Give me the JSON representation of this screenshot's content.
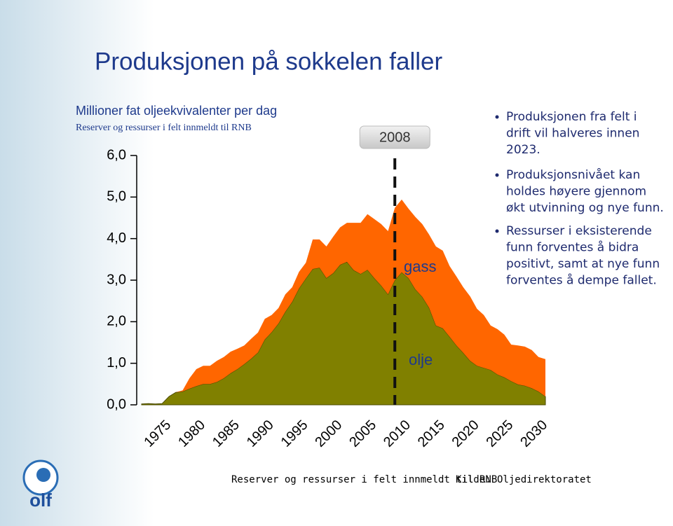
{
  "chart_data": {
    "type": "stacked-area",
    "title": "Produksjonen på sokkelen faller",
    "subtitle": "Millioner fat oljeekvivalenter per dag",
    "subtitle2": "Reserver og ressurser i felt innmeldt til RNB",
    "x": [
      1971,
      1972,
      1973,
      1974,
      1975,
      1976,
      1977,
      1978,
      1979,
      1980,
      1981,
      1982,
      1983,
      1984,
      1985,
      1986,
      1987,
      1988,
      1989,
      1990,
      1991,
      1992,
      1993,
      1994,
      1995,
      1996,
      1997,
      1998,
      1999,
      2000,
      2001,
      2002,
      2003,
      2004,
      2005,
      2006,
      2007,
      2008,
      2009,
      2010,
      2011,
      2012,
      2013,
      2014,
      2015,
      2016,
      2017,
      2018,
      2019,
      2020,
      2021,
      2022,
      2023,
      2024,
      2025,
      2026,
      2027,
      2028,
      2029,
      2030
    ],
    "series": [
      {
        "name": "olje",
        "color": "#808000",
        "values": [
          0.02,
          0.03,
          0.02,
          0.03,
          0.2,
          0.3,
          0.32,
          0.39,
          0.45,
          0.5,
          0.5,
          0.55,
          0.64,
          0.76,
          0.86,
          0.98,
          1.11,
          1.26,
          1.57,
          1.75,
          1.96,
          2.24,
          2.48,
          2.8,
          3.04,
          3.27,
          3.3,
          3.05,
          3.17,
          3.37,
          3.44,
          3.24,
          3.15,
          3.25,
          3.05,
          2.87,
          2.66,
          3.0,
          3.19,
          3.05,
          2.78,
          2.6,
          2.34,
          1.91,
          1.84,
          1.64,
          1.43,
          1.25,
          1.06,
          0.94,
          0.89,
          0.84,
          0.73,
          0.66,
          0.57,
          0.49,
          0.46,
          0.4,
          0.32,
          0.2
        ]
      },
      {
        "name": "gass",
        "color": "#ff6600",
        "values": [
          0,
          0,
          0,
          0,
          0,
          0,
          0.03,
          0.25,
          0.41,
          0.44,
          0.44,
          0.51,
          0.51,
          0.52,
          0.49,
          0.45,
          0.48,
          0.48,
          0.5,
          0.41,
          0.37,
          0.42,
          0.35,
          0.4,
          0.38,
          0.71,
          0.68,
          0.76,
          0.88,
          0.9,
          0.94,
          1.14,
          1.23,
          1.34,
          1.42,
          1.48,
          1.52,
          1.74,
          1.75,
          1.67,
          1.74,
          1.75,
          1.76,
          1.9,
          1.87,
          1.7,
          1.66,
          1.58,
          1.55,
          1.37,
          1.27,
          1.07,
          1.09,
          1.03,
          0.88,
          0.94,
          0.94,
          0.92,
          0.83,
          0.9
        ]
      }
    ],
    "xlim": [
      1971,
      2030
    ],
    "xticks": [
      1975,
      1980,
      1985,
      1990,
      1995,
      2000,
      2005,
      2010,
      2015,
      2020,
      2025,
      2030
    ],
    "ylim": [
      0,
      6
    ],
    "yticks": [
      {
        "value": 0,
        "label": "0,0"
      },
      {
        "value": 1,
        "label": "1,0"
      },
      {
        "value": 2,
        "label": "2,0"
      },
      {
        "value": 3,
        "label": "3,0"
      },
      {
        "value": 4,
        "label": "4,0"
      },
      {
        "value": 5,
        "label": "5,0"
      },
      {
        "value": 6,
        "label": "6,0"
      }
    ],
    "vline_x": 2008,
    "bullets": [
      [
        "Produksjonen fra felt i",
        "drift vil halveres innen",
        "2023."
      ],
      [
        "Produksjonsnivået kan",
        "holdes høyere gjennom",
        "økt utvinning og nye funn."
      ],
      [
        "Ressurser i eksisterende",
        "funn forventes å bidra",
        "positivt, samt at nye funn",
        "forventes å dempe fallet."
      ]
    ],
    "footer": "Reserver og ressurser i felt innmeldt til RNB",
    "source": "Kilde: Oljedirektoratet",
    "logo": "olf"
  }
}
